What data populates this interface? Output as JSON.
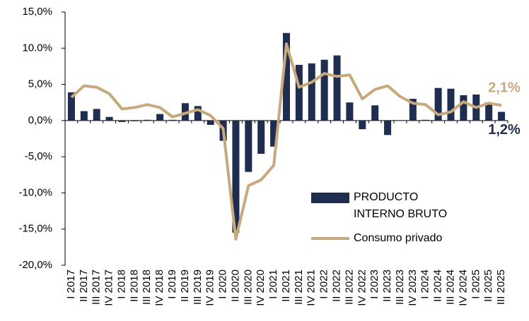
{
  "chart_data": {
    "type": "bar_line",
    "categories": [
      "I 2017",
      "II 2017",
      "III 2017",
      "IV 2017",
      "I 2018",
      "II 2018",
      "III 2018",
      "IV 2018",
      "I 2019",
      "II 2019",
      "III 2019",
      "IV 2019",
      "I 2020",
      "II 2020",
      "III 2020",
      "IV 2020",
      "I 2021",
      "II 2021",
      "III 2021",
      "IV 2021",
      "I 2022",
      "II 2022",
      "III 2022",
      "IV 2022",
      "I 2023",
      "II 2023",
      "III 2023",
      "IV 2023",
      "I 2024",
      "II 2024",
      "III 2024",
      "IV 2024",
      "I 2025",
      "II 2025",
      "III 2025"
    ],
    "series": [
      {
        "name": "PRODUCTO INTERNO BRUTO",
        "type": "bar",
        "color": "#1f2d4e",
        "values": [
          3.9,
          1.3,
          1.6,
          0.5,
          -0.2,
          -0.1,
          0.1,
          0.9,
          0.1,
          2.4,
          2.0,
          -0.6,
          -2.8,
          -15.5,
          -7.1,
          -4.6,
          -3.6,
          12.1,
          7.7,
          7.9,
          8.4,
          9.0,
          2.5,
          -1.2,
          2.1,
          -2.0,
          0.0,
          3.0,
          0.1,
          4.5,
          4.4,
          3.5,
          3.6,
          2.5,
          1.2
        ],
        "value_labels": [
          null,
          null,
          null,
          null,
          null,
          null,
          null,
          null,
          null,
          null,
          null,
          null,
          null,
          null,
          null,
          null,
          null,
          null,
          null,
          null,
          null,
          null,
          null,
          null,
          null,
          null,
          null,
          null,
          null,
          null,
          null,
          null,
          null,
          null,
          "1,2%"
        ]
      },
      {
        "name": "Consumo privado",
        "type": "line",
        "color": "#c8a97e",
        "values": [
          3.2,
          4.8,
          4.6,
          3.7,
          1.6,
          1.8,
          2.2,
          1.8,
          0.5,
          1.0,
          1.5,
          0.7,
          -1.1,
          -16.4,
          -9.0,
          -8.2,
          -6.2,
          10.6,
          4.6,
          5.3,
          6.5,
          6.1,
          6.3,
          3.0,
          4.3,
          4.8,
          3.3,
          2.4,
          2.2,
          0.8,
          1.2,
          2.6,
          1.8,
          2.4,
          2.1
        ],
        "value_labels": [
          null,
          null,
          null,
          null,
          null,
          null,
          null,
          null,
          null,
          null,
          null,
          null,
          null,
          null,
          null,
          null,
          null,
          null,
          null,
          null,
          null,
          null,
          null,
          null,
          null,
          null,
          null,
          null,
          null,
          null,
          null,
          null,
          null,
          null,
          "2,1%"
        ]
      }
    ],
    "ylim": [
      -20,
      15
    ],
    "yticks": [
      {
        "value": -20,
        "label": "-20,0%"
      },
      {
        "value": -15,
        "label": "-15,0%"
      },
      {
        "value": -10,
        "label": "-10,0%"
      },
      {
        "value": -5,
        "label": "-5,0%"
      },
      {
        "value": 0,
        "label": "0,0%"
      },
      {
        "value": 5,
        "label": "5,0%"
      },
      {
        "value": 10,
        "label": "10.0%"
      },
      {
        "value": 15,
        "label": "15,0%"
      }
    ],
    "grid": false,
    "legend": "lower right"
  }
}
